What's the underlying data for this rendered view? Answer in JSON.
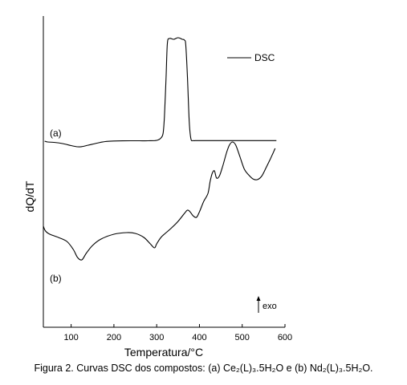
{
  "chart_data": {
    "type": "line",
    "title": "",
    "xlabel": "Temperatura/°C",
    "ylabel": "dQ/dT",
    "xlim": [
      35,
      600
    ],
    "xticks": [
      100,
      200,
      300,
      400,
      500,
      600
    ],
    "xtick_labels": [
      "100",
      "200",
      "300",
      "400",
      "500",
      "600"
    ],
    "y_ticks_shown": false,
    "grid": false,
    "legend": {
      "position": "top-right",
      "entries": [
        "DSC"
      ]
    },
    "annotations": {
      "exo_label": "exo"
    },
    "y_units": "arbitrary (offset curves)",
    "series": [
      {
        "label": "(a)",
        "x": [
          38,
          45,
          60,
          80,
          100,
          115,
          125,
          140,
          160,
          180,
          200,
          220,
          240,
          260,
          280,
          300,
          310,
          315,
          318,
          322,
          325,
          330,
          340,
          350,
          360,
          365,
          368,
          372,
          376,
          380,
          385,
          390,
          400,
          450,
          500,
          550,
          580
        ],
        "y": [
          10,
          9,
          8.5,
          7,
          4.5,
          3,
          3.2,
          5,
          7.5,
          9.5,
          10.2,
          10.4,
          10.5,
          10.5,
          10.5,
          11,
          14,
          20,
          40,
          90,
          132,
          138,
          137,
          139,
          137,
          136,
          130,
          90,
          35,
          13,
          10.7,
          10.7,
          10.7,
          10.7,
          10.7,
          10.7,
          10.7
        ]
      },
      {
        "label": "(b)",
        "x": [
          35,
          40,
          50,
          70,
          90,
          105,
          115,
          125,
          135,
          150,
          170,
          200,
          230,
          250,
          270,
          285,
          295,
          300,
          310,
          320,
          335,
          350,
          365,
          372,
          378,
          385,
          393,
          400,
          410,
          420,
          425,
          430,
          435,
          440,
          447,
          455,
          463,
          470,
          477,
          485,
          495,
          505,
          515,
          525,
          535,
          545,
          555,
          565,
          572,
          577
        ],
        "y": [
          -96,
          -102,
          -106,
          -110,
          -115,
          -125,
          -135,
          -138,
          -130,
          -120,
          -112,
          -106,
          -104,
          -105,
          -110,
          -118,
          -123,
          -118,
          -110,
          -105,
          -98,
          -90,
          -80,
          -76,
          -78,
          -83,
          -85,
          -78,
          -65,
          -55,
          -40,
          -30,
          -27,
          -36,
          -33,
          -20,
          -5,
          5,
          9,
          5,
          -10,
          -25,
          -32,
          -37,
          -38,
          -34,
          -24,
          -13,
          -5,
          1
        ]
      }
    ]
  },
  "caption": "Figura 2. Curvas DSC dos compostos: (a) Ce₂(L)₃.5H₂O e (b) Nd₂(L)₃.5H₂O."
}
